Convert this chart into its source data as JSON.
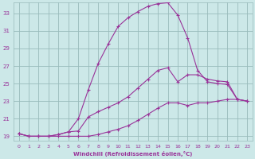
{
  "xlabel": "Windchill (Refroidissement éolien,°C)",
  "bg_color": "#cce8e8",
  "grid_color": "#99bbbb",
  "line_color": "#993399",
  "xlim": [
    -0.5,
    23.5
  ],
  "ylim": [
    18.5,
    34.2
  ],
  "xticks": [
    0,
    1,
    2,
    3,
    4,
    5,
    6,
    7,
    8,
    9,
    10,
    11,
    12,
    13,
    14,
    15,
    16,
    17,
    18,
    19,
    20,
    21,
    22,
    23
  ],
  "yticks": [
    19,
    21,
    23,
    25,
    27,
    29,
    31,
    33
  ],
  "series_hump_x": [
    0,
    1,
    2,
    3,
    4,
    5,
    6,
    7,
    8,
    9,
    10,
    11,
    12,
    13,
    14,
    15,
    16,
    17,
    18,
    19,
    20,
    21,
    22,
    23
  ],
  "series_hump_y": [
    19.3,
    19.0,
    19.0,
    19.0,
    19.2,
    19.5,
    21.0,
    24.3,
    27.3,
    29.5,
    31.5,
    32.5,
    33.2,
    33.8,
    34.1,
    34.2,
    32.8,
    30.2,
    26.5,
    25.2,
    25.0,
    24.9,
    23.2,
    23.0
  ],
  "series_top_x": [
    0,
    1,
    2,
    3,
    4,
    5,
    6,
    7,
    8,
    9,
    10,
    11,
    12,
    13,
    14,
    15,
    16,
    17,
    18,
    19,
    20,
    21,
    22,
    23
  ],
  "series_top_y": [
    19.3,
    19.0,
    19.0,
    19.0,
    19.2,
    19.5,
    19.6,
    21.2,
    21.8,
    22.3,
    22.8,
    23.5,
    24.5,
    25.5,
    26.5,
    26.8,
    25.2,
    26.0,
    26.0,
    25.5,
    25.3,
    25.2,
    23.2,
    23.0
  ],
  "series_base_x": [
    0,
    1,
    2,
    3,
    4,
    5,
    6,
    7,
    8,
    9,
    10,
    11,
    12,
    13,
    14,
    15,
    16,
    17,
    18,
    19,
    20,
    21,
    22,
    23
  ],
  "series_base_y": [
    19.3,
    19.0,
    19.0,
    19.0,
    19.0,
    19.0,
    19.0,
    19.0,
    19.2,
    19.5,
    19.8,
    20.2,
    20.8,
    21.5,
    22.2,
    22.8,
    22.8,
    22.5,
    22.8,
    22.8,
    23.0,
    23.2,
    23.2,
    23.0
  ]
}
